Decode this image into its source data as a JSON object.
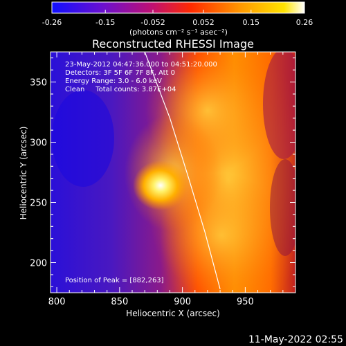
{
  "chart_data": {
    "type": "heatmap",
    "title": "Reconstructed RHESSI Image",
    "xlabel": "Heliocentric X (arcsec)",
    "ylabel": "Heliocentric Y (arcsec)",
    "xlim": [
      795,
      990
    ],
    "ylim": [
      175,
      375
    ],
    "xticks": [
      800,
      850,
      900,
      950
    ],
    "yticks": [
      200,
      250,
      300,
      350
    ],
    "colorbar": {
      "label": "(photons cm⁻² s⁻¹ asec⁻²)",
      "range": [
        -0.26,
        0.26
      ],
      "ticks": [
        "-0.26",
        "-0.15",
        "-0.052",
        "0.052",
        "0.15",
        "0.26"
      ],
      "colors": [
        "#1010ff",
        "#6a10d0",
        "#c01070",
        "#ff2a00",
        "#ff9a00",
        "#ffe400",
        "#ffffff"
      ]
    },
    "annotations": [
      "23-May-2012 04:47:36.000 to 04:51:20.000",
      "Detectors: 3F 5F 6F 7F 8F, Att 0",
      "Energy Range: 3.0 - 6.0 keV",
      "Clean     Total counts: 3.87E+04"
    ],
    "peak_text": "Position of Peak = [882,263]",
    "peak": [
      882,
      263
    ],
    "limb_curve": [
      [
        870,
        375
      ],
      [
        890,
        320
      ],
      [
        905,
        270
      ],
      [
        918,
        225
      ],
      [
        930,
        178
      ]
    ],
    "grid": false
  },
  "footer": {
    "timestamp": "11-May-2022 02:55"
  }
}
